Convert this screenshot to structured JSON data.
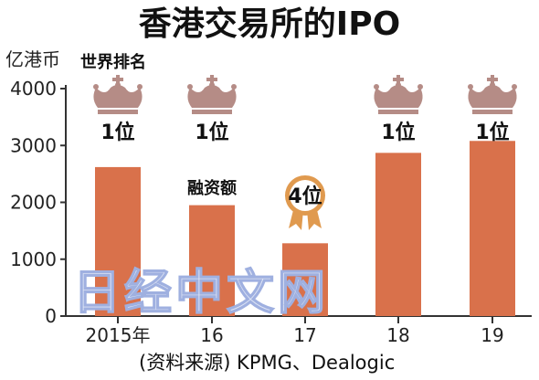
{
  "chart_data": {
    "type": "bar",
    "title": "香港交易所的IPO",
    "ylabel": "亿港币",
    "categories": [
      "2015年",
      "16",
      "17",
      "18",
      "19"
    ],
    "series": [
      {
        "name": "融资额",
        "values": [
          2620,
          1950,
          1280,
          2870,
          3080
        ]
      }
    ],
    "ranks": [
      "1位",
      "1位",
      "4位",
      "1位",
      "1位"
    ],
    "rank_label": "世界排名",
    "series_label": "融资额",
    "ylim": [
      0,
      4000
    ],
    "yticks": [
      "0",
      "1000",
      "2000",
      "3000",
      "4000"
    ],
    "grid": false,
    "source": "(资料来源) KPMG、Dealogic",
    "watermark": "日经中文网",
    "colors": {
      "bar": "#d9714b",
      "crown": "#b58c86",
      "medal": "#e09a4f"
    },
    "icons": [
      "crown-icon",
      "medal-icon"
    ]
  }
}
